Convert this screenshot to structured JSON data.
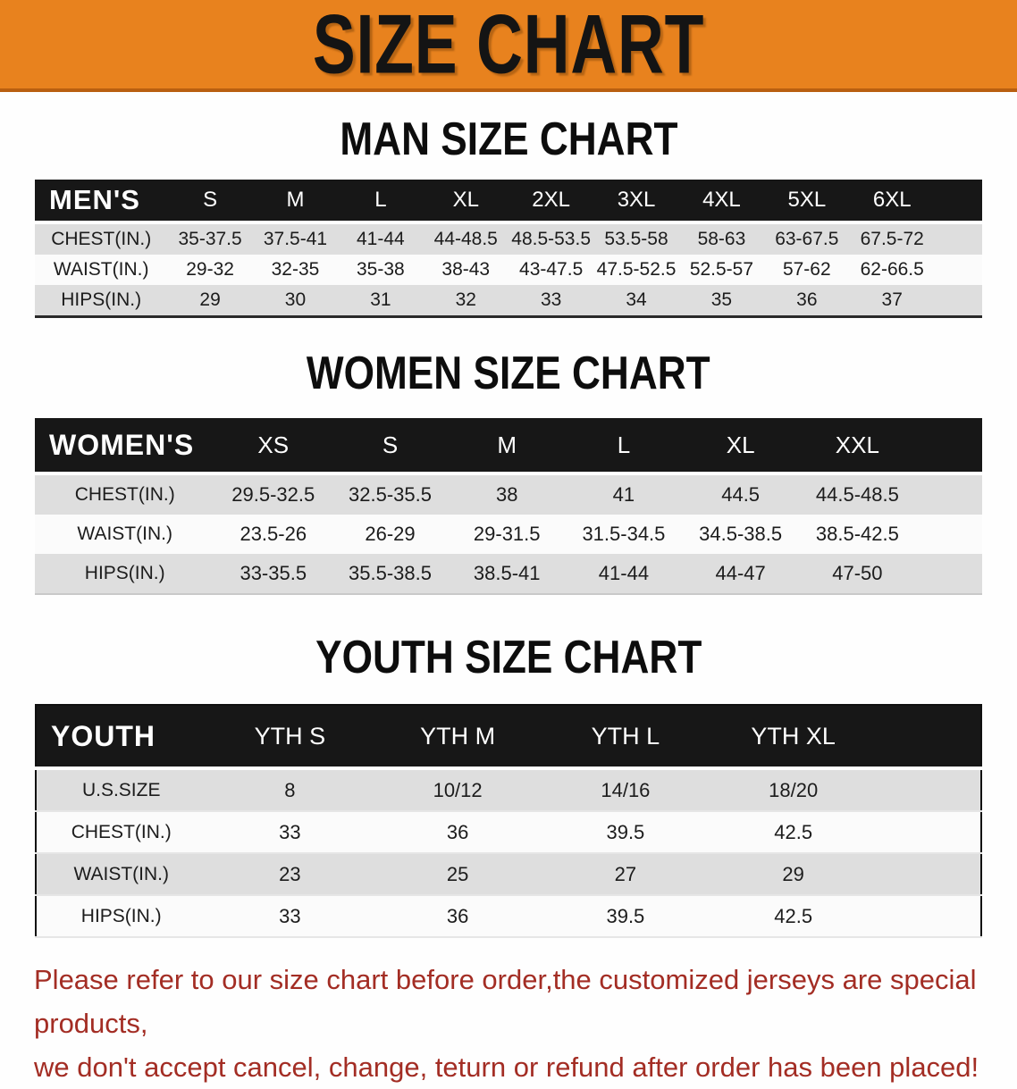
{
  "banner": {
    "title": "SIZE CHART",
    "bg_color": "#E8821E",
    "text_color": "#141414"
  },
  "sections": [
    {
      "heading": "MAN SIZE CHART",
      "table": {
        "header_label": "MEN'S",
        "columns": [
          "S",
          "M",
          "L",
          "XL",
          "2XL",
          "3XL",
          "4XL",
          "5XL",
          "6XL"
        ],
        "rows": [
          {
            "label": "CHEST(IN.)",
            "values": [
              "35-37.5",
              "37.5-41",
              "41-44",
              "44-48.5",
              "48.5-53.5",
              "53.5-58",
              "58-63",
              "63-67.5",
              "67.5-72"
            ]
          },
          {
            "label": "WAIST(IN.)",
            "values": [
              "29-32",
              "32-35",
              "35-38",
              "38-43",
              "43-47.5",
              "47.5-52.5",
              "52.5-57",
              "57-62",
              "62-66.5"
            ]
          },
          {
            "label": "HIPS(IN.)",
            "values": [
              "29",
              "30",
              "31",
              "32",
              "33",
              "34",
              "35",
              "36",
              "37"
            ]
          }
        ]
      }
    },
    {
      "heading": "WOMEN SIZE CHART",
      "table": {
        "header_label": "WOMEN'S",
        "columns": [
          "XS",
          "S",
          "M",
          "L",
          "XL",
          "XXL"
        ],
        "rows": [
          {
            "label": "CHEST(IN.)",
            "values": [
              "29.5-32.5",
              "32.5-35.5",
              "38",
              "41",
              "44.5",
              "44.5-48.5"
            ]
          },
          {
            "label": "WAIST(IN.)",
            "values": [
              "23.5-26",
              "26-29",
              "29-31.5",
              "31.5-34.5",
              "34.5-38.5",
              "38.5-42.5"
            ]
          },
          {
            "label": "HIPS(IN.)",
            "values": [
              "33-35.5",
              "35.5-38.5",
              "38.5-41",
              "41-44",
              "44-47",
              "47-50"
            ]
          }
        ]
      }
    },
    {
      "heading": "YOUTH SIZE CHART",
      "table": {
        "header_label": "YOUTH",
        "columns": [
          "YTH S",
          "YTH M",
          "YTH L",
          "YTH XL"
        ],
        "rows": [
          {
            "label": "U.S.SIZE",
            "values": [
              "8",
              "10/12",
              "14/16",
              "18/20"
            ]
          },
          {
            "label": "CHEST(IN.)",
            "values": [
              "33",
              "36",
              "39.5",
              "42.5"
            ]
          },
          {
            "label": "WAIST(IN.)",
            "values": [
              "23",
              "25",
              "27",
              "29"
            ]
          },
          {
            "label": "HIPS(IN.)",
            "values": [
              "33",
              "36",
              "39.5",
              "42.5"
            ]
          }
        ]
      }
    }
  ],
  "disclaimer": {
    "line1": "Please refer to our size chart before order,the customized jerseys are special products,",
    "line2": "we don't accept cancel, change, teturn or refund after order has been placed!",
    "color": "#A32D24"
  }
}
